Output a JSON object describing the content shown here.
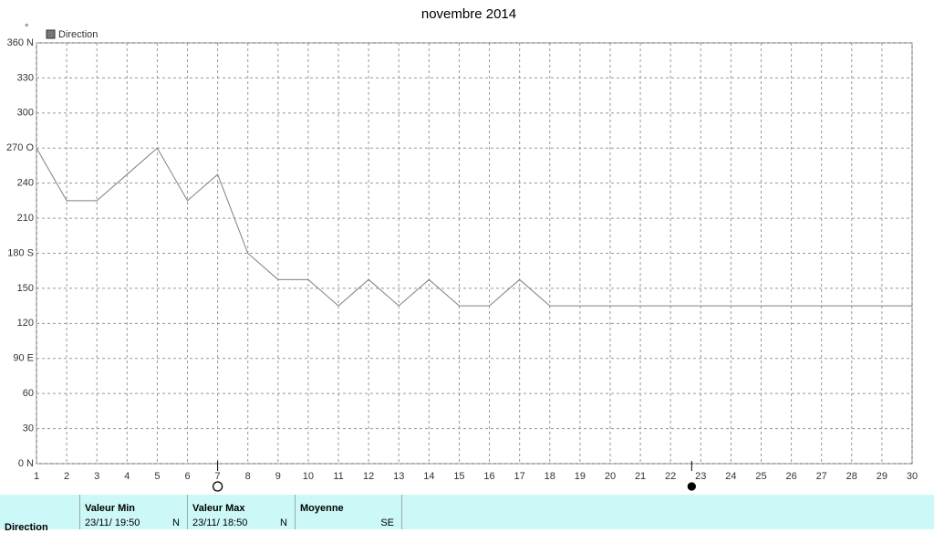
{
  "chart_data": {
    "type": "line",
    "title": "novembre 2014",
    "y_unit": "°",
    "x": [
      1,
      2,
      3,
      4,
      5,
      6,
      7,
      8,
      9,
      10,
      11,
      12,
      13,
      14,
      15,
      16,
      17,
      18,
      19,
      20,
      21,
      22,
      23,
      24,
      25,
      26,
      27,
      28,
      29,
      30
    ],
    "series": [
      {
        "name": "Direction",
        "color": "#808080",
        "values": [
          270,
          225,
          225,
          247.5,
          270,
          225,
          247.5,
          180,
          157.5,
          157.5,
          135,
          157.5,
          135,
          157.5,
          135,
          135,
          157.5,
          135,
          135,
          135,
          135,
          135,
          135,
          135,
          135,
          135,
          135,
          135,
          135,
          135
        ]
      }
    ],
    "xlim": [
      1,
      30
    ],
    "xticks": [
      1,
      2,
      3,
      4,
      5,
      6,
      7,
      8,
      9,
      10,
      11,
      12,
      13,
      14,
      15,
      16,
      17,
      18,
      19,
      20,
      21,
      22,
      23,
      24,
      25,
      26,
      27,
      28,
      29,
      30
    ],
    "ylim": [
      0,
      360
    ],
    "yticks": [
      {
        "value": 0,
        "label": "0  N"
      },
      30,
      60,
      {
        "value": 90,
        "label": "90  E"
      },
      120,
      150,
      {
        "value": 180,
        "label": "180 S"
      },
      210,
      240,
      {
        "value": 270,
        "label": "270 O"
      },
      300,
      330,
      {
        "value": 360,
        "label": "360 N"
      }
    ],
    "grid": true,
    "moon_phases": [
      {
        "x": 7,
        "filled": false
      },
      {
        "x": 22.7,
        "filled": true
      }
    ]
  },
  "table": {
    "row_label": "Direction",
    "columns": [
      {
        "header": "Valeur Min",
        "date": "23/11/ 19:50",
        "value": "N"
      },
      {
        "header": "Valeur Max",
        "date": "23/11/ 18:50",
        "value": "N"
      },
      {
        "header": "Moyenne",
        "value": "SE"
      }
    ]
  }
}
